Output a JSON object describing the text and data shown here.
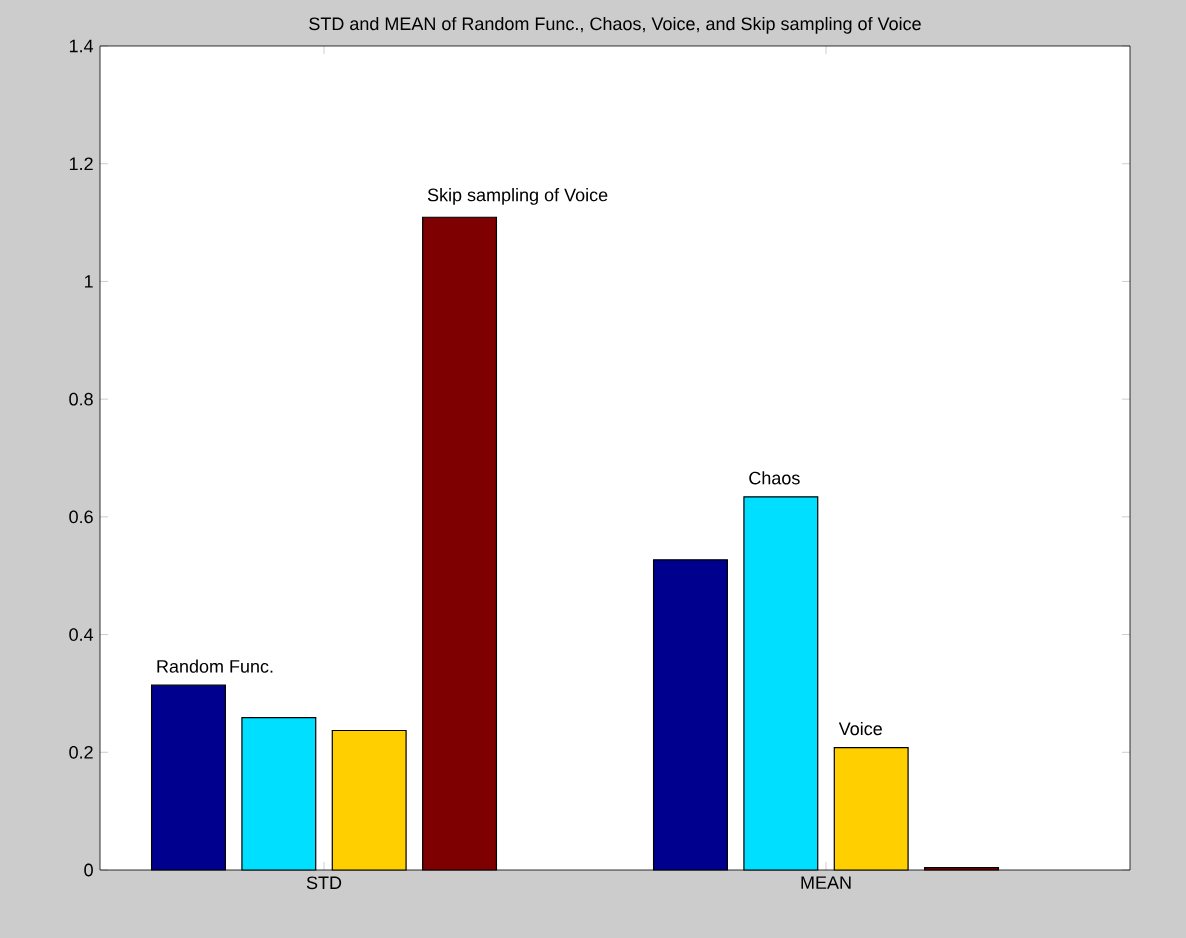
{
  "chart_data": {
    "type": "bar",
    "title": "STD and MEAN of Random Func., Chaos, Voice, and Skip sampling of Voice",
    "categories": [
      "STD",
      "MEAN"
    ],
    "series": [
      {
        "name": "Random Func.",
        "color": "#00008f",
        "values": [
          0.314,
          0.527
        ]
      },
      {
        "name": "Chaos",
        "color": "#00dfff",
        "values": [
          0.259,
          0.634
        ]
      },
      {
        "name": "Voice",
        "color": "#ffcf00",
        "values": [
          0.237,
          0.208
        ]
      },
      {
        "name": "Skip sampling of Voice",
        "color": "#7f0000",
        "values": [
          1.109,
          0.004
        ]
      }
    ],
    "ylim": [
      0,
      1.4
    ],
    "yticks": [
      0,
      0.2,
      0.4,
      0.6,
      0.8,
      1,
      1.2,
      1.4
    ]
  }
}
